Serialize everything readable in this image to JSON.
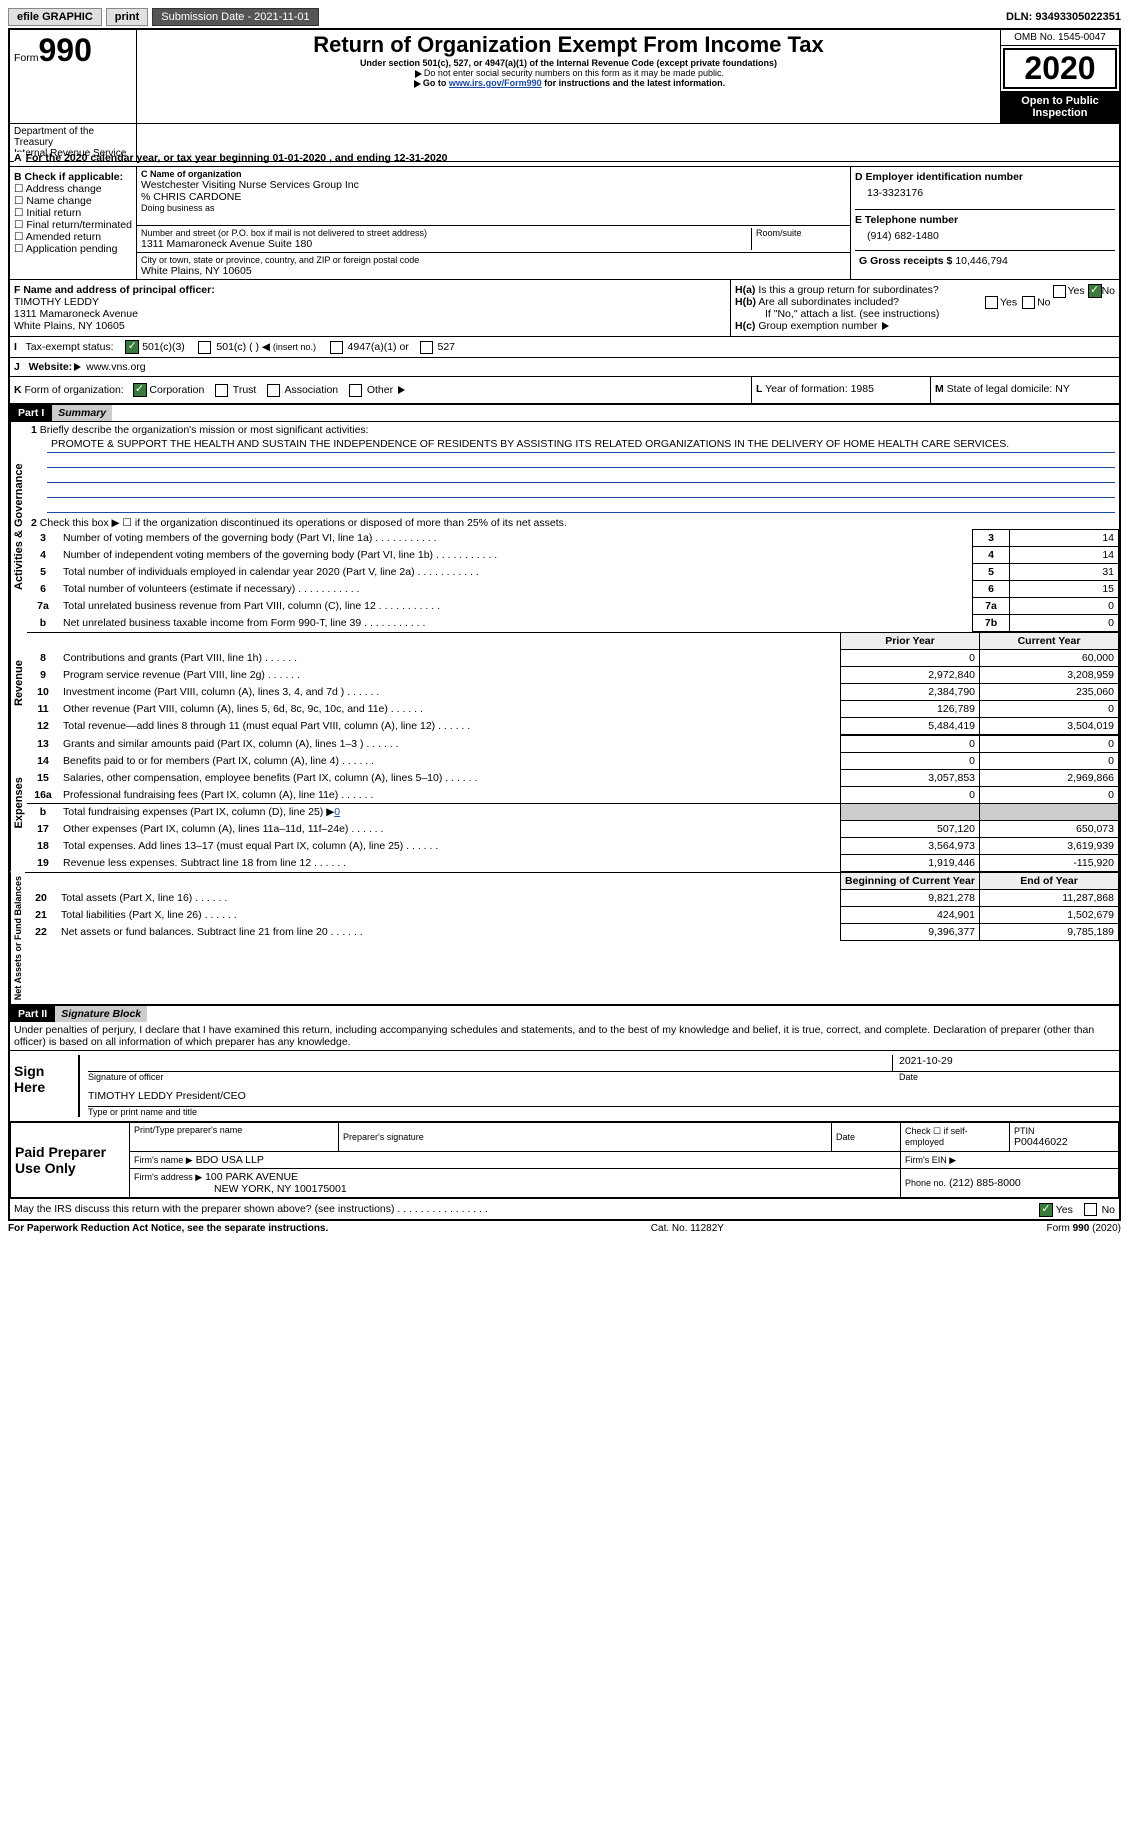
{
  "top": {
    "efile_label": "efile GRAPHIC",
    "print_btn": "print",
    "sub_date_label": "Submission Date - 2021-11-01",
    "dln": "DLN: 93493305022351"
  },
  "header": {
    "form_word": "Form",
    "form_num": "990",
    "title": "Return of Organization Exempt From Income Tax",
    "subtitle": "Under section 501(c), 527, or 4947(a)(1) of the Internal Revenue Code (except private foundations)",
    "note1": "Do not enter social security numbers on this form as it may be made public.",
    "note2_pre": "Go to ",
    "note2_link": "www.irs.gov/Form990",
    "note2_post": " for instructions and the latest information.",
    "omb": "OMB No. 1545-0047",
    "year": "2020",
    "open": "Open to Public Inspection",
    "dept1": "Department of the Treasury",
    "dept2": "Internal Revenue Service"
  },
  "periodA": "For the 2020 calendar year, or tax year beginning 01-01-2020   , and ending 12-31-2020",
  "boxB": {
    "label": "B Check if applicable:",
    "items": [
      "Address change",
      "Name change",
      "Initial return",
      "Final return/terminated",
      "Amended return",
      "Application pending"
    ]
  },
  "boxC": {
    "label": "C Name of organization",
    "name": "Westchester Visiting Nurse Services Group Inc",
    "care": "% CHRIS CARDONE",
    "dba_label": "Doing business as",
    "addr_label": "Number and street (or P.O. box if mail is not delivered to street address)",
    "addr": "1311 Mamaroneck Avenue Suite 180",
    "room_label": "Room/suite",
    "city_label": "City or town, state or province, country, and ZIP or foreign postal code",
    "city": "White Plains, NY  10605"
  },
  "boxD": {
    "label": "D Employer identification number",
    "val": "13-3323176"
  },
  "boxE": {
    "label": "E Telephone number",
    "val": "(914) 682-1480"
  },
  "boxG": {
    "label": "G Gross receipts $",
    "val": "10,446,794"
  },
  "boxF": {
    "label": "F Name and address of principal officer:",
    "name": "TIMOTHY LEDDY",
    "addr1": "1311 Mamaroneck Avenue",
    "addr2": "White Plains, NY  10605"
  },
  "boxH": {
    "a_label": "H(a)",
    "a_text": "Is this a group return for subordinates?",
    "a_yes": "Yes",
    "a_no": "No",
    "b_label": "H(b)",
    "b_text": "Are all subordinates included?",
    "b_note": "If \"No,\" attach a list. (see instructions)",
    "c_label": "H(c)",
    "c_text": "Group exemption number"
  },
  "boxI": {
    "label": "I",
    "text": "Tax-exempt status:",
    "o1": "501(c)(3)",
    "o2": "501(c) (  )",
    "o2_note": "(insert no.)",
    "o3": "4947(a)(1) or",
    "o4": "527"
  },
  "boxJ": {
    "label": "J",
    "text": "Website:",
    "val": "www.vns.org"
  },
  "boxK": {
    "label": "K",
    "text": "Form of organization:",
    "o1": "Corporation",
    "o2": "Trust",
    "o3": "Association",
    "o4": "Other"
  },
  "boxL": {
    "label": "L",
    "text": "Year of formation: 1985"
  },
  "boxM": {
    "label": "M",
    "text": "State of legal domicile: NY"
  },
  "part1": {
    "num": "Part I",
    "title": "Summary",
    "vlabels": {
      "act": "Activities & Governance",
      "rev": "Revenue",
      "exp": "Expenses",
      "net": "Net Assets or Fund Balances"
    },
    "line1_label": "1",
    "line1_text": "Briefly describe the organization's mission or most significant activities:",
    "mission": "PROMOTE & SUPPORT THE HEALTH AND SUSTAIN THE INDEPENDENCE OF RESIDENTS BY ASSISTING ITS RELATED ORGANIZATIONS IN THE DELIVERY OF HOME HEALTH CARE SERVICES.",
    "line2_label": "2",
    "line2_text": "Check this box ▶ ☐ if the organization discontinued its operations or disposed of more than 25% of its net assets.",
    "rows_a": [
      {
        "n": "3",
        "d": "Number of voting members of the governing body (Part VI, line 1a)",
        "b": "3",
        "v": "14"
      },
      {
        "n": "4",
        "d": "Number of independent voting members of the governing body (Part VI, line 1b)",
        "b": "4",
        "v": "14"
      },
      {
        "n": "5",
        "d": "Total number of individuals employed in calendar year 2020 (Part V, line 2a)",
        "b": "5",
        "v": "31"
      },
      {
        "n": "6",
        "d": "Total number of volunteers (estimate if necessary)",
        "b": "6",
        "v": "15"
      },
      {
        "n": "7a",
        "d": "Total unrelated business revenue from Part VIII, column (C), line 12",
        "b": "7a",
        "v": "0"
      },
      {
        "n": "b",
        "d": "Net unrelated business taxable income from Form 990-T, line 39",
        "b": "7b",
        "v": "0"
      }
    ],
    "prior_hdr": "Prior Year",
    "curr_hdr": "Current Year",
    "rows_rev": [
      {
        "n": "8",
        "d": "Contributions and grants (Part VIII, line 1h)",
        "p": "0",
        "c": "60,000"
      },
      {
        "n": "9",
        "d": "Program service revenue (Part VIII, line 2g)",
        "p": "2,972,840",
        "c": "3,208,959"
      },
      {
        "n": "10",
        "d": "Investment income (Part VIII, column (A), lines 3, 4, and 7d )",
        "p": "2,384,790",
        "c": "235,060"
      },
      {
        "n": "11",
        "d": "Other revenue (Part VIII, column (A), lines 5, 6d, 8c, 9c, 10c, and 11e)",
        "p": "126,789",
        "c": "0"
      },
      {
        "n": "12",
        "d": "Total revenue—add lines 8 through 11 (must equal Part VIII, column (A), line 12)",
        "p": "5,484,419",
        "c": "3,504,019"
      }
    ],
    "rows_exp": [
      {
        "n": "13",
        "d": "Grants and similar amounts paid (Part IX, column (A), lines 1–3 )",
        "p": "0",
        "c": "0"
      },
      {
        "n": "14",
        "d": "Benefits paid to or for members (Part IX, column (A), line 4)",
        "p": "0",
        "c": "0"
      },
      {
        "n": "15",
        "d": "Salaries, other compensation, employee benefits (Part IX, column (A), lines 5–10)",
        "p": "3,057,853",
        "c": "2,969,866"
      },
      {
        "n": "16a",
        "d": "Professional fundraising fees (Part IX, column (A), line 11e)",
        "p": "0",
        "c": "0"
      }
    ],
    "line16b": {
      "n": "b",
      "d": "Total fundraising expenses (Part IX, column (D), line 25) ▶",
      "v": "0"
    },
    "rows_exp2": [
      {
        "n": "17",
        "d": "Other expenses (Part IX, column (A), lines 11a–11d, 11f–24e)",
        "p": "507,120",
        "c": "650,073"
      },
      {
        "n": "18",
        "d": "Total expenses. Add lines 13–17 (must equal Part IX, column (A), line 25)",
        "p": "3,564,973",
        "c": "3,619,939"
      },
      {
        "n": "19",
        "d": "Revenue less expenses. Subtract line 18 from line 12",
        "p": "1,919,446",
        "c": "-115,920"
      }
    ],
    "beg_hdr": "Beginning of Current Year",
    "end_hdr": "End of Year",
    "rows_net": [
      {
        "n": "20",
        "d": "Total assets (Part X, line 16)",
        "p": "9,821,278",
        "c": "11,287,868"
      },
      {
        "n": "21",
        "d": "Total liabilities (Part X, line 26)",
        "p": "424,901",
        "c": "1,502,679"
      },
      {
        "n": "22",
        "d": "Net assets or fund balances. Subtract line 21 from line 20",
        "p": "9,396,377",
        "c": "9,785,189"
      }
    ]
  },
  "part2": {
    "num": "Part II",
    "title": "Signature Block",
    "decl": "Under penalties of perjury, I declare that I have examined this return, including accompanying schedules and statements, and to the best of my knowledge and belief, it is true, correct, and complete. Declaration of preparer (other than officer) is based on all information of which preparer has any knowledge.",
    "sign_here": "Sign Here",
    "sig_officer": "Signature of officer",
    "sig_date": "Date",
    "sig_date_val": "2021-10-29",
    "name_title": "TIMOTHY LEDDY  President/CEO",
    "name_title_label": "Type or print name and title",
    "paid_prep": "Paid Preparer Use Only",
    "pt_name": "Print/Type preparer's name",
    "pt_sig": "Preparer's signature",
    "pt_date": "Date",
    "pt_check": "Check ☐ if self-employed",
    "pt_ptin": "PTIN",
    "pt_ptin_val": "P00446022",
    "firm_name_label": "Firm's name ▶",
    "firm_name": "BDO USA LLP",
    "firm_ein_label": "Firm's EIN ▶",
    "firm_addr_label": "Firm's address ▶",
    "firm_addr": "100 PARK AVENUE",
    "firm_city": "NEW YORK, NY  100175001",
    "firm_phone_label": "Phone no.",
    "firm_phone": "(212) 885-8000",
    "discuss": "May the IRS discuss this return with the preparer shown above? (see instructions)",
    "yes": "Yes",
    "no": "No"
  },
  "footer": {
    "pra": "For Paperwork Reduction Act Notice, see the separate instructions.",
    "cat": "Cat. No. 11282Y",
    "form": "Form 990 (2020)"
  }
}
